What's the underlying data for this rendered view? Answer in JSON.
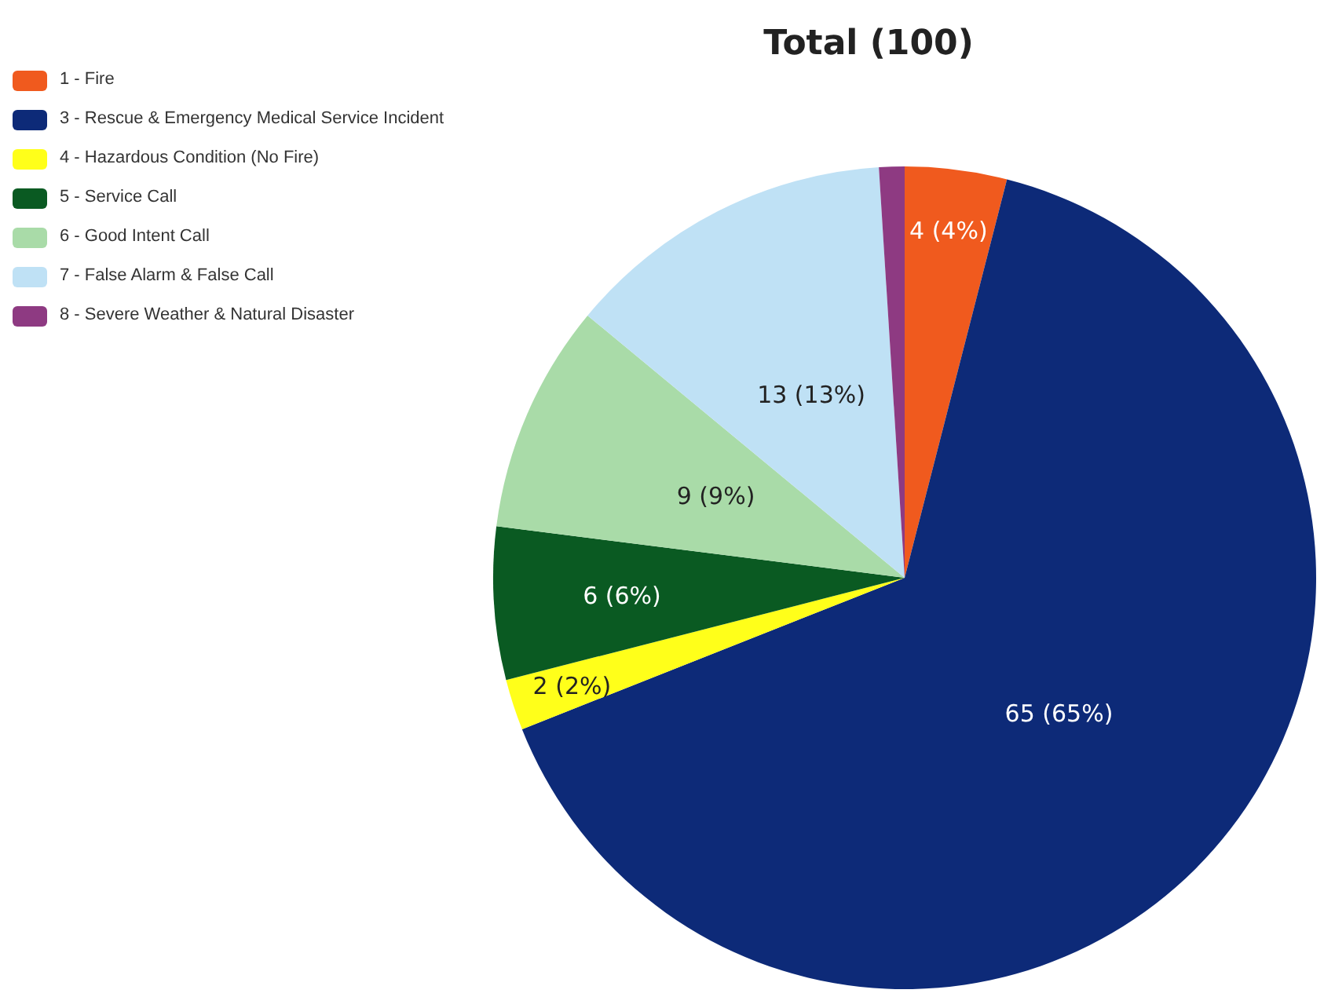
{
  "chart_data": {
    "type": "pie",
    "title": "Total (100)",
    "categories": [
      "1 - Fire",
      "3 - Rescue & Emergency Medical Service Incident",
      "4 - Hazardous Condition (No Fire)",
      "5 - Service Call",
      "6 - Good Intent Call",
      "7 - False Alarm & False Call",
      "8 - Severe Weather & Natural Disaster"
    ],
    "values": [
      4,
      65,
      2,
      6,
      9,
      13,
      1
    ],
    "colors": [
      "#f05a1e",
      "#0d2a78",
      "#ffff1a",
      "#0a5a22",
      "#a9dba8",
      "#bfe1f5",
      "#8e3a82"
    ],
    "value_labels": [
      "4 (4%)",
      "65 (65%)",
      "2 (2%)",
      "6 (6%)",
      "9 (9%)",
      "13 (13%)",
      null
    ],
    "legend": "top left"
  }
}
